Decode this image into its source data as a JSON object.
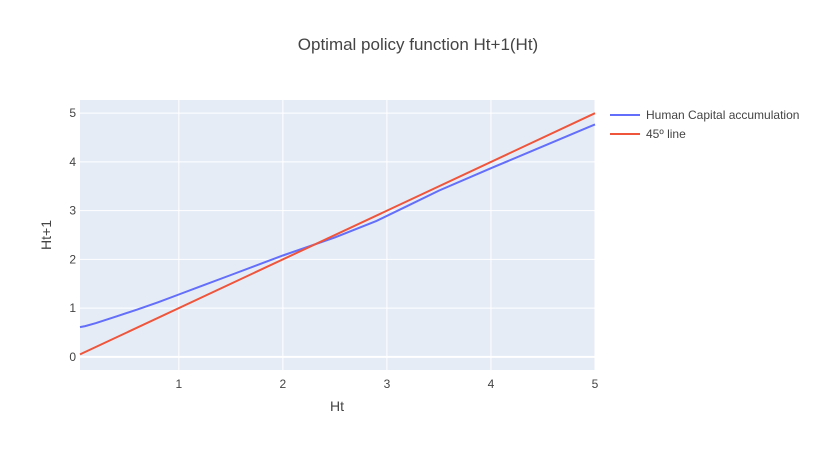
{
  "chart_data": {
    "type": "line",
    "title": "Optimal policy function Ht+1(Ht)",
    "xlabel": "Ht",
    "ylabel": "Ht+1",
    "xlim": [
      0.05,
      5
    ],
    "ylim": [
      -0.27,
      5.27
    ],
    "xticks": [
      1,
      2,
      3,
      4,
      5
    ],
    "yticks": [
      0,
      1,
      2,
      3,
      4,
      5
    ],
    "grid": true,
    "legend_position": "top-right outside",
    "plot_background": "#e5ecf6",
    "series": [
      {
        "name": "Human Capital accumulation",
        "color": "#636efa",
        "x": [
          0.05,
          0.1,
          0.2,
          0.4,
          0.6,
          0.8,
          1.0,
          1.2,
          1.5,
          2.0,
          2.5,
          2.9,
          3.2,
          3.5,
          4.0,
          4.5,
          5.0
        ],
        "y": [
          0.61,
          0.63,
          0.69,
          0.83,
          0.97,
          1.12,
          1.28,
          1.44,
          1.68,
          2.08,
          2.45,
          2.79,
          3.1,
          3.41,
          3.87,
          4.32,
          4.77
        ]
      },
      {
        "name": "45º line",
        "color": "#ef553b",
        "x": [
          0.05,
          5
        ],
        "y": [
          0.05,
          5
        ]
      }
    ]
  }
}
